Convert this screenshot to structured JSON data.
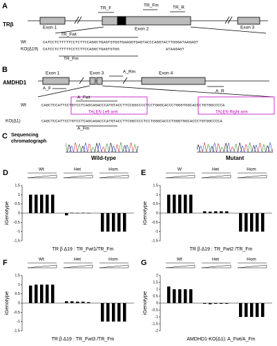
{
  "panel_a": {
    "letter": "A",
    "gene": "TRβ",
    "exons": [
      "Exon 1",
      "Exon 2",
      "Exon 3"
    ],
    "primers": [
      "TR_F",
      "TR_Fm",
      "TR_R"
    ],
    "rows": [
      {
        "label": "TR_Fwt",
        "seq": ""
      },
      {
        "label": "Wt",
        "seq": "CATCCTCTTTTTCCTCTTCCAGGCTGAGTGTGGTGAAGGTGAGTACCCAGGTACTTGGGATAAGAGT"
      },
      {
        "label": "KO(Δ19)",
        "seq": "CATCCTCTTTTTCCTCTTCCAGGCTGAGTGTGG                    ATAAGAGT"
      },
      {
        "label": "TR_Fm",
        "seq": ""
      }
    ]
  },
  "panel_b": {
    "letter": "B",
    "gene": "AMDHD1",
    "exons": [
      "Exon 1",
      "Exon 3",
      "Exon 4"
    ],
    "primers": [
      "A_Rm",
      "A_F",
      "A_R",
      "A_Fwt",
      "A_Fm"
    ],
    "rows": [
      {
        "label": "Wt",
        "seq": "CAGCTCCATTCCTGTCCTCAGCAGACCCATGTACCTTCCGGCCCCTCCTGGGCACCCTGGGTGGCACCCTGTGGCCCCA"
      },
      {
        "label": "KO(Δ1)",
        "seq": "CAGCTCCATTCCTGTCCTCAGCAGACCCATGTACCTTCGGCCCCTCCTGGGCACCCTGGGTGGCACCCTGTGGCCCCA"
      }
    ],
    "left_arm": "TALEN Left arm",
    "right_arm": "TALEN Right arm"
  },
  "panel_c": {
    "letter": "C",
    "title": [
      "Sequencing",
      "chromatograph"
    ],
    "labels": [
      "Wild-type",
      "Mutant"
    ]
  },
  "chart_data": [
    {
      "type": "bar",
      "letter": "D",
      "ylabel": "iGenotype",
      "xlabel": "TR β Δ19 : TR_Fwt1/TR_Fm",
      "color": "#000000",
      "ylim": [
        -1.5,
        1.5
      ],
      "yticks": [
        1.5,
        1,
        0.5,
        0,
        -0.5,
        -1,
        -1.5
      ],
      "groups": [
        {
          "label": "Wt",
          "values": [
            1,
            1,
            1,
            1,
            1
          ]
        },
        {
          "label": "Het",
          "values": [
            -0.12,
            0.02,
            0.01,
            0.02,
            0.01
          ]
        },
        {
          "label": "Hom",
          "values": [
            -1,
            -1,
            -1,
            -1,
            -1
          ]
        }
      ]
    },
    {
      "type": "bar",
      "letter": "E",
      "ylabel": "iGenotype",
      "xlabel": "TR β Δ19 : TR_Fwt2 /TR_Fm",
      "color": "#000000",
      "ylim": [
        -1.5,
        1.5
      ],
      "yticks": [
        1.5,
        1,
        0.5,
        0,
        -0.5,
        -1,
        -1.5
      ],
      "groups": [
        {
          "label": "W",
          "values": [
            1,
            1,
            1,
            1,
            1
          ]
        },
        {
          "label": "Het",
          "values": [
            0.1,
            0.08,
            0.1,
            0.1,
            0.1
          ]
        },
        {
          "label": "Hom",
          "values": [
            -1,
            -1,
            -1,
            -1,
            -1
          ]
        }
      ]
    },
    {
      "type": "bar",
      "letter": "F",
      "ylabel": "iGenotype",
      "xlabel": "TR β Δ19 : TR_Fwt3 /TR_Fm",
      "color": "#000000",
      "ylim": [
        -1.5,
        1.5
      ],
      "yticks": [
        1.5,
        1,
        0.5,
        0,
        -0.5,
        -1,
        -1.5
      ],
      "groups": [
        {
          "label": "Wt",
          "values": [
            0.95,
            1,
            1,
            1,
            1
          ]
        },
        {
          "label": "Het",
          "values": [
            0.1,
            0.1,
            0.08,
            0.08,
            0.05
          ]
        },
        {
          "label": "Hom",
          "values": [
            -1,
            -1,
            -1,
            -1,
            -1
          ]
        }
      ]
    },
    {
      "type": "bar",
      "letter": "G",
      "ylabel": "iGenotype",
      "xlabel": "AMDHD1-KO(Δ1): A_Fwt/A_Fm",
      "color": "#000000",
      "ylim": [
        -2,
        2
      ],
      "yticks": [
        2,
        1.5,
        1,
        0.5,
        0,
        -0.5,
        -1,
        -1.5,
        -2
      ],
      "groups": [
        {
          "label": "Wt",
          "values": [
            1.2,
            1,
            1,
            1,
            1
          ]
        },
        {
          "label": "Het",
          "values": [
            -0.05,
            -0.08,
            -0.05,
            -0.05,
            -0.05
          ]
        },
        {
          "label": "Hom",
          "values": [
            -1,
            -1,
            -1,
            -1,
            -1
          ]
        }
      ]
    }
  ]
}
